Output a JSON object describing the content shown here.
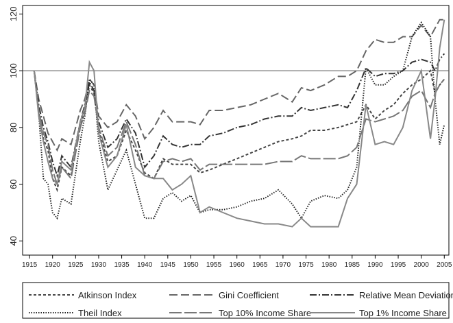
{
  "chart_data": {
    "type": "line",
    "x": [
      1916,
      1917,
      1918,
      1919,
      1920,
      1921,
      1922,
      1924,
      1926,
      1927,
      1928,
      1929,
      1930,
      1932,
      1934,
      1936,
      1938,
      1940,
      1942,
      1944,
      1946,
      1948,
      1950,
      1952,
      1954,
      1957,
      1960,
      1963,
      1966,
      1969,
      1972,
      1974,
      1976,
      1979,
      1982,
      1984,
      1986,
      1988,
      1990,
      1992,
      1994,
      1996,
      1998,
      2000,
      2002,
      2003,
      2004,
      2005
    ],
    "series": [
      {
        "name": "Atkinson Index",
        "color": "#444444",
        "dash": "4,3",
        "values": [
          100,
          85,
          76,
          72,
          62,
          58,
          66,
          63,
          80,
          86,
          95,
          92,
          79,
          68,
          70,
          79,
          72,
          64,
          62,
          69,
          67,
          67,
          67,
          64,
          65,
          67,
          69,
          71,
          73,
          75,
          76,
          77,
          79,
          79,
          80,
          81,
          82,
          88,
          83,
          86,
          88,
          92,
          95,
          97,
          100,
          92,
          95,
          97
        ]
      },
      {
        "name": "Gini Coefficient",
        "color": "#666666",
        "dash": "12,5",
        "values": [
          100,
          90,
          84,
          78,
          75,
          72,
          76,
          74,
          86,
          90,
          97,
          95,
          84,
          80,
          82,
          88,
          84,
          76,
          80,
          86,
          82,
          82,
          82,
          81,
          86,
          86,
          87,
          88,
          90,
          92,
          89,
          94,
          93,
          95,
          98,
          98,
          100,
          107,
          111,
          110,
          110,
          112,
          112,
          116,
          112,
          115,
          118,
          118
        ]
      },
      {
        "name": "Relative Mean Deviation",
        "color": "#333333",
        "dash": "10,3,2,3",
        "values": [
          100,
          88,
          80,
          75,
          68,
          63,
          70,
          66,
          82,
          88,
          96,
          93,
          82,
          73,
          76,
          83,
          78,
          66,
          70,
          77,
          74,
          73,
          74,
          74,
          77,
          78,
          80,
          81,
          83,
          84,
          84,
          87,
          86,
          87,
          88,
          87,
          93,
          101,
          98,
          99,
          99,
          100,
          103,
          104,
          103,
          100,
          104,
          106
        ]
      },
      {
        "name": "Theil Index",
        "color": "#222222",
        "dash": "1.5,2",
        "values": [
          100,
          85,
          62,
          60,
          50,
          48,
          55,
          53,
          75,
          84,
          97,
          95,
          75,
          58,
          65,
          72,
          60,
          48,
          48,
          55,
          57,
          54,
          56,
          50,
          51,
          51,
          52,
          54,
          55,
          58,
          53,
          48,
          54,
          56,
          55,
          58,
          66,
          101,
          95,
          95,
          98,
          100,
          112,
          117,
          112,
          90,
          74,
          81
        ]
      },
      {
        "name": "Top 10% Income Share",
        "color": "#777777",
        "dash": "18,4",
        "values": [
          100,
          86,
          78,
          74,
          65,
          60,
          66,
          62,
          80,
          85,
          93,
          91,
          80,
          70,
          73,
          82,
          74,
          63,
          62,
          68,
          69,
          68,
          69,
          65,
          67,
          67,
          67,
          67,
          67,
          68,
          68,
          70,
          69,
          69,
          69,
          70,
          73,
          83,
          82,
          83,
          84,
          86,
          91,
          93,
          87,
          92,
          95,
          97
        ]
      },
      {
        "name": "Top 1% Income Share",
        "color": "#888888",
        "dash": "none",
        "values": [
          100,
          84,
          75,
          68,
          62,
          60,
          68,
          65,
          82,
          87,
          103,
          100,
          78,
          66,
          70,
          81,
          66,
          63,
          62,
          62,
          58,
          60,
          63,
          50,
          52,
          50,
          48,
          47,
          46,
          46,
          45,
          48,
          45,
          45,
          45,
          55,
          60,
          88,
          74,
          75,
          74,
          80,
          93,
          100,
          76,
          90,
          108,
          118
        ]
      }
    ],
    "xlim": [
      1913.5,
      2006
    ],
    "ylim": [
      35,
      123
    ],
    "xticks": [
      1915,
      1920,
      1925,
      1930,
      1935,
      1940,
      1945,
      1950,
      1955,
      1960,
      1965,
      1970,
      1975,
      1980,
      1985,
      1990,
      1995,
      2000,
      2005
    ],
    "yticks": [
      40,
      60,
      80,
      100,
      120
    ],
    "hline": 100
  }
}
